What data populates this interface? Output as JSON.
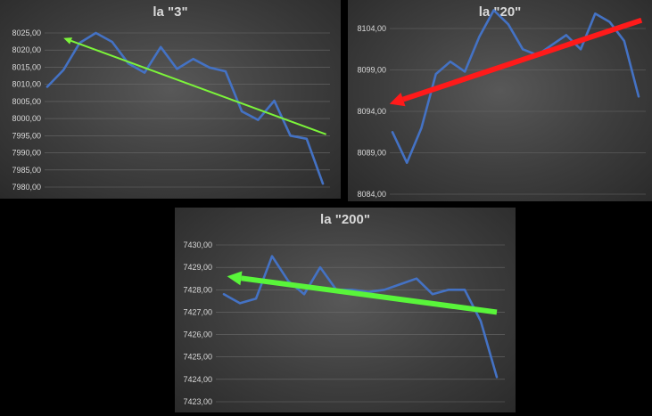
{
  "chart_data": [
    {
      "type": "line",
      "title": "la \"3\"",
      "xlabel": "",
      "ylabel": "",
      "ylim": [
        7980,
        8025
      ],
      "yticks": [
        "8025,00",
        "8020,00",
        "8015,00",
        "8010,00",
        "8005,00",
        "8000,00",
        "7995,00",
        "7990,00",
        "7985,00",
        "7980,00"
      ],
      "grid": true,
      "series": [
        {
          "color": "#4472c4",
          "values": [
            8009.3,
            8014.2,
            8022.1,
            8025.0,
            8022.4,
            8016.1,
            8013.4,
            8020.9,
            8014.5,
            8017.4,
            8014.9,
            8013.8,
            8002.1,
            7999.6,
            8005.2,
            7995.0,
            7994.1,
            7981.0
          ]
        }
      ],
      "annotations": [
        {
          "type": "arrow",
          "color": "#7cf43a",
          "from": [
            17.2,
            7995.4
          ],
          "to": [
            1.0,
            8023.5
          ]
        }
      ]
    },
    {
      "type": "line",
      "title": "la \"20\"",
      "xlabel": "",
      "ylabel": "",
      "ylim": [
        8084,
        8107
      ],
      "yticks": [
        "8104,00",
        "8099,00",
        "8094,00",
        "8089,00",
        "8084,00"
      ],
      "grid": true,
      "series": [
        {
          "color": "#4472c4",
          "values": [
            8091.5,
            8087.8,
            8092.0,
            8098.5,
            8100.0,
            8098.8,
            8103.0,
            8106.2,
            8104.5,
            8101.5,
            8100.8,
            8102.0,
            8103.2,
            8101.5,
            8105.8,
            8104.8,
            8102.5,
            8095.8
          ]
        }
      ],
      "annotations": [
        {
          "type": "arrow",
          "color": "#ff1a1a",
          "from": [
            17.2,
            8105.0
          ],
          "to": [
            -0.2,
            8094.9
          ]
        }
      ]
    },
    {
      "type": "line",
      "title": "la \"200\"",
      "xlabel": "",
      "ylabel": "",
      "ylim": [
        7423,
        7430
      ],
      "yticks": [
        "7430,00",
        "7429,00",
        "7428,00",
        "7427,00",
        "7426,00",
        "7425,00",
        "7424,00",
        "7423,00"
      ],
      "grid": true,
      "series": [
        {
          "color": "#4472c4",
          "values": [
            7427.8,
            7427.4,
            7427.6,
            7429.5,
            7428.4,
            7427.8,
            7429.0,
            7428.0,
            7428.0,
            7427.9,
            7428.0,
            7428.25,
            7428.5,
            7427.8,
            7428.0,
            7428.0,
            7426.6,
            7424.1
          ]
        }
      ],
      "annotations": [
        {
          "type": "arrow",
          "color": "#59f53a",
          "from": [
            17.0,
            7427.0
          ],
          "to": [
            0.2,
            7428.6
          ]
        }
      ]
    }
  ]
}
